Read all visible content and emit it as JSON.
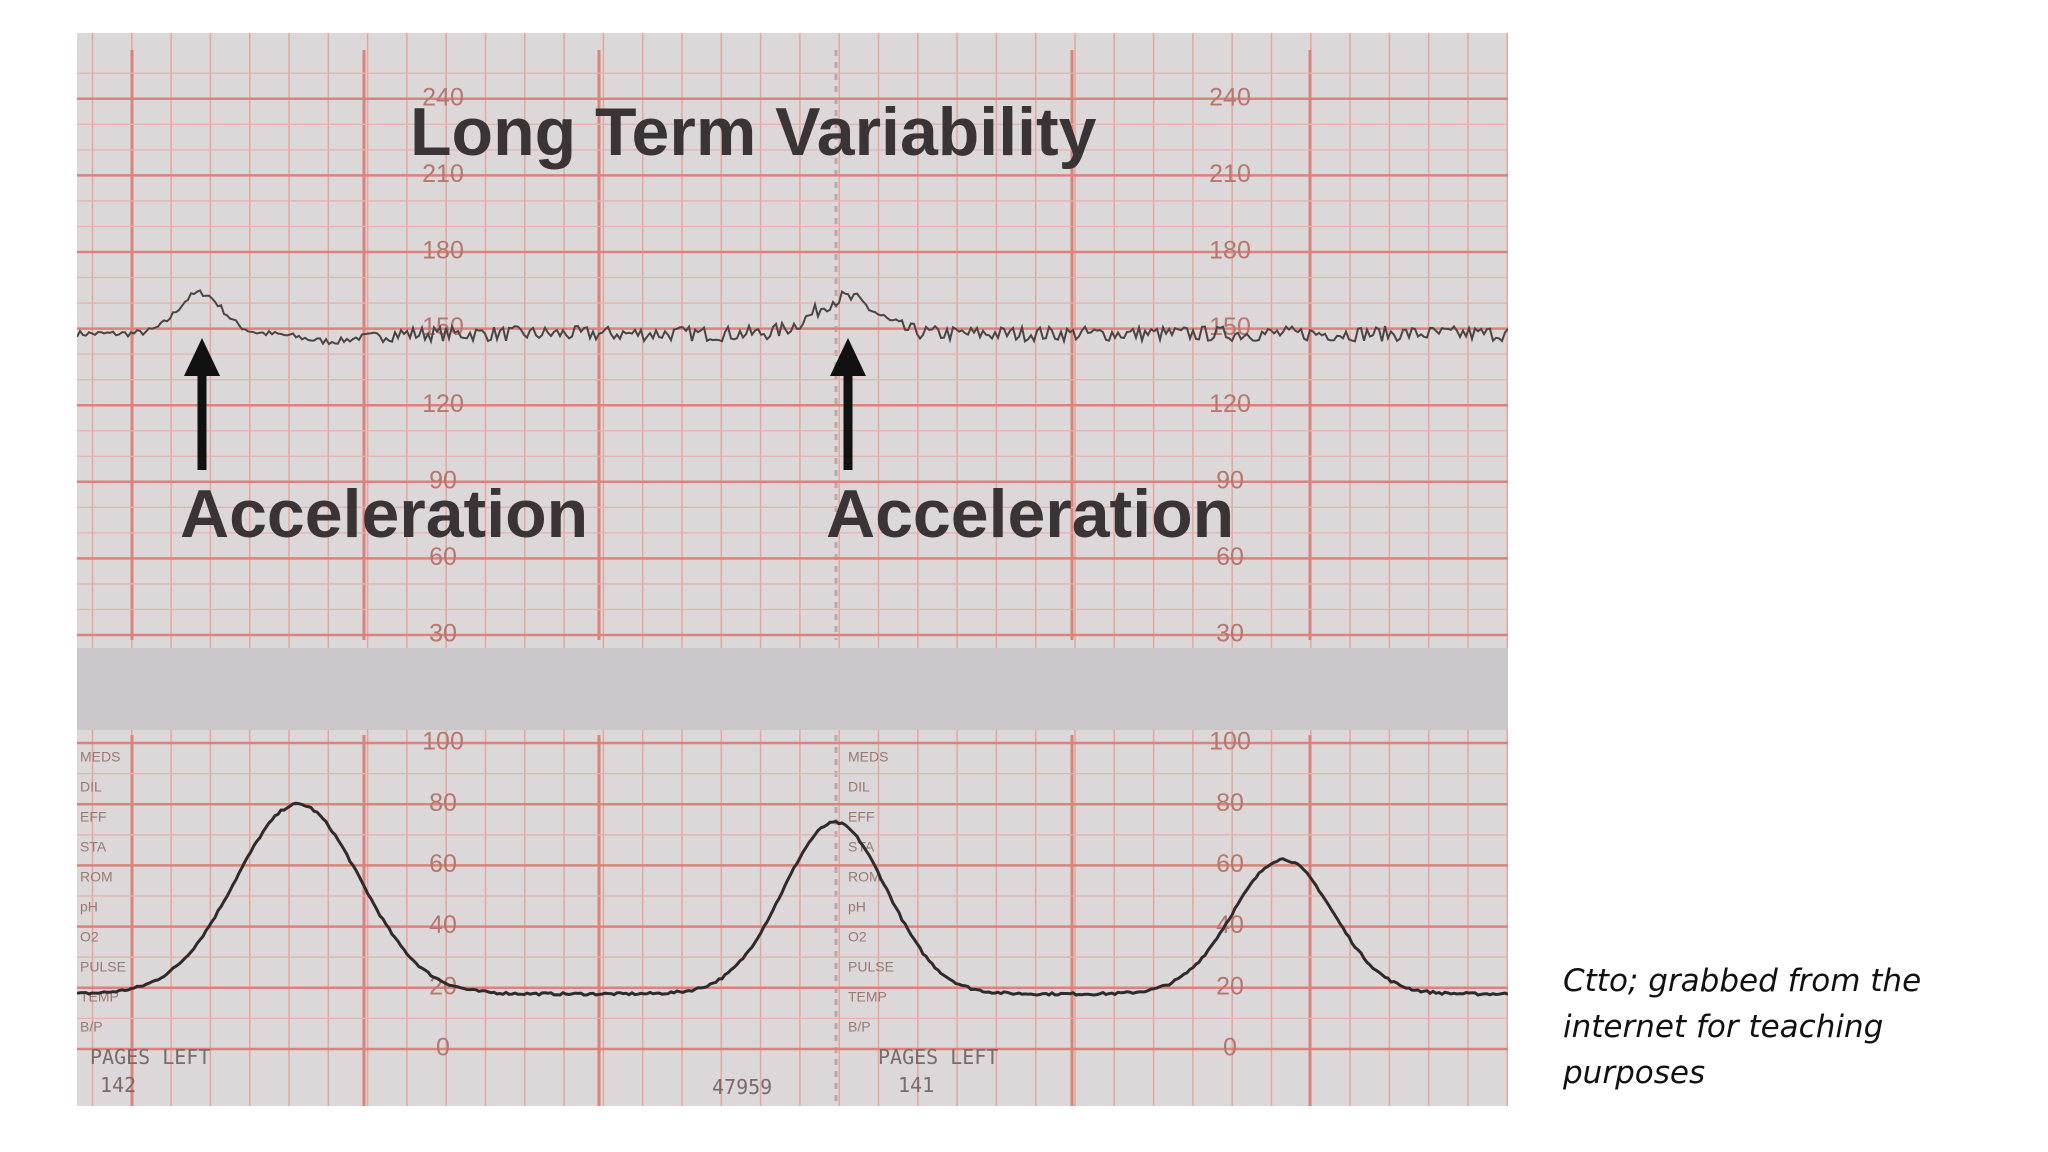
{
  "slide": {
    "figure": {
      "title": "Long Term Variability",
      "annotations": [
        "Acceleration",
        "Acceleration"
      ],
      "fhr_scale": [
        240,
        210,
        180,
        150,
        120,
        90,
        60,
        30
      ],
      "uc_scale": [
        100,
        80,
        60,
        40,
        20,
        0
      ],
      "marker_labels": [
        "MEDS",
        "DIL",
        "EFF",
        "STA",
        "ROM",
        "pH",
        "O2",
        "PULSE",
        "TEMP",
        "B/P"
      ],
      "footer": {
        "pages_left_label": "PAGES LEFT",
        "pages_left_1": "142",
        "serial": "47959",
        "pages_left_2": "141"
      }
    },
    "caption": "Ctto; grabbed from the internet for teaching purposes"
  }
}
